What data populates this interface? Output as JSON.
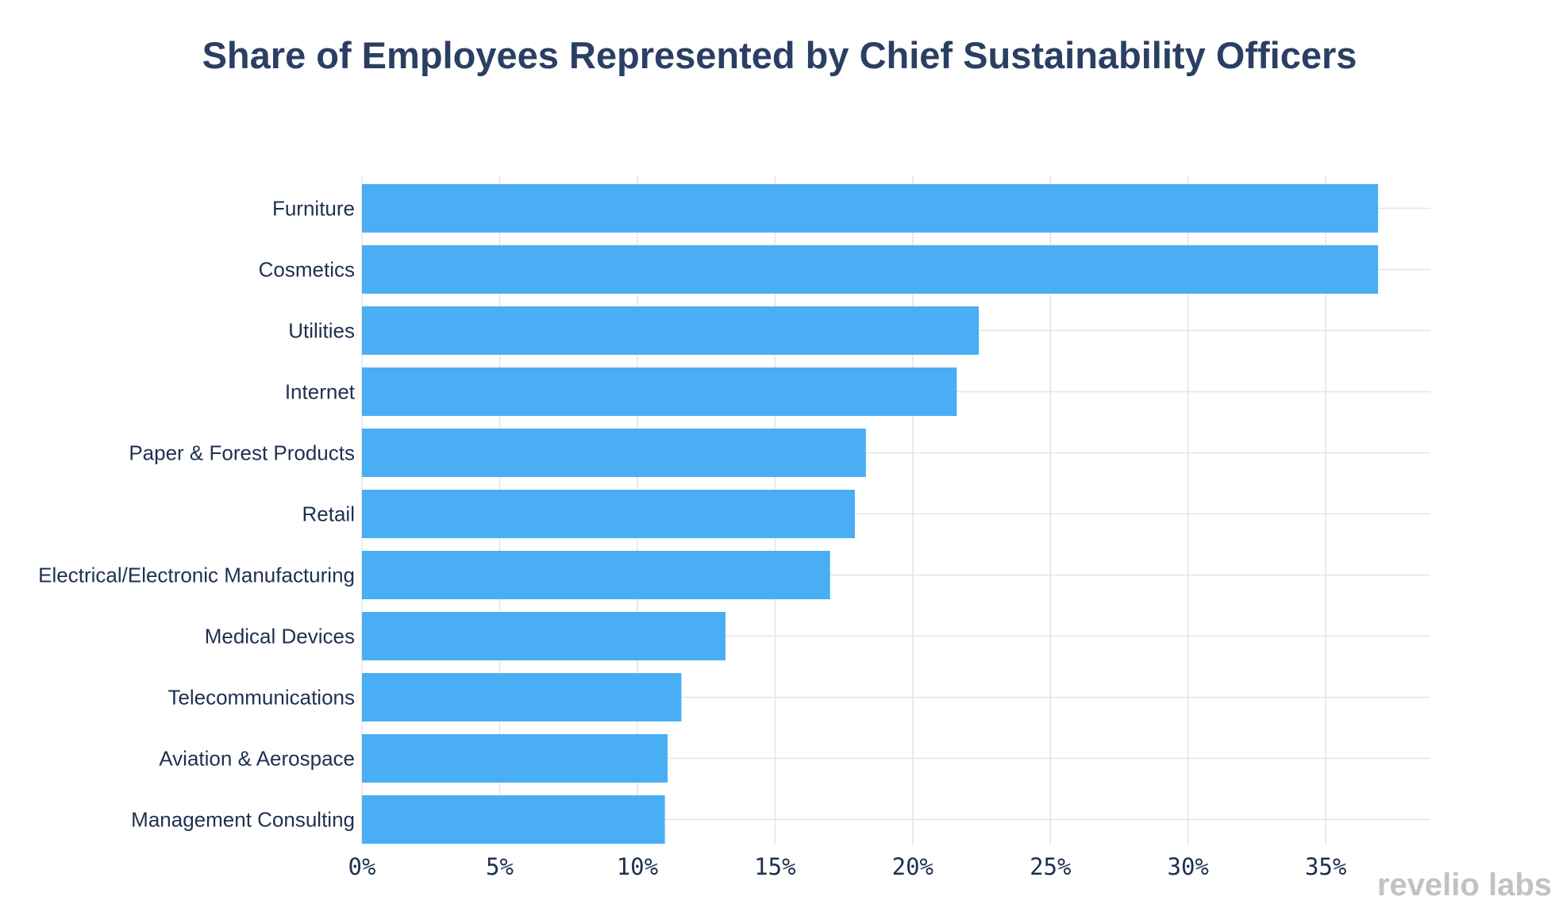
{
  "chart_data": {
    "type": "bar",
    "orientation": "horizontal",
    "title": "Share of Employees Represented by Chief Sustainability Officers",
    "xlabel": "",
    "ylabel": "",
    "xlim": [
      0,
      38.8
    ],
    "x_ticks": [
      0,
      5,
      10,
      15,
      20,
      25,
      30,
      35
    ],
    "x_tick_labels": [
      "0%",
      "5%",
      "10%",
      "15%",
      "20%",
      "25%",
      "30%",
      "35%"
    ],
    "grid": true,
    "legend": "none",
    "categories": [
      "Furniture",
      "Cosmetics",
      "Utilities",
      "Internet",
      "Paper & Forest Products",
      "Retail",
      "Electrical/Electronic Manufacturing",
      "Medical Devices",
      "Telecommunications",
      "Aviation & Aerospace",
      "Management Consulting"
    ],
    "values": [
      36.9,
      36.9,
      22.4,
      21.6,
      18.3,
      17.9,
      17.0,
      13.2,
      11.6,
      11.1,
      11.0
    ]
  },
  "colors": {
    "bar": "#4aaef4",
    "title": "#2a3f63",
    "label": "#1f3050",
    "grid": "#e5e5e5",
    "brand": "#c2c2c2"
  },
  "brand": {
    "name": "revelio labs"
  }
}
